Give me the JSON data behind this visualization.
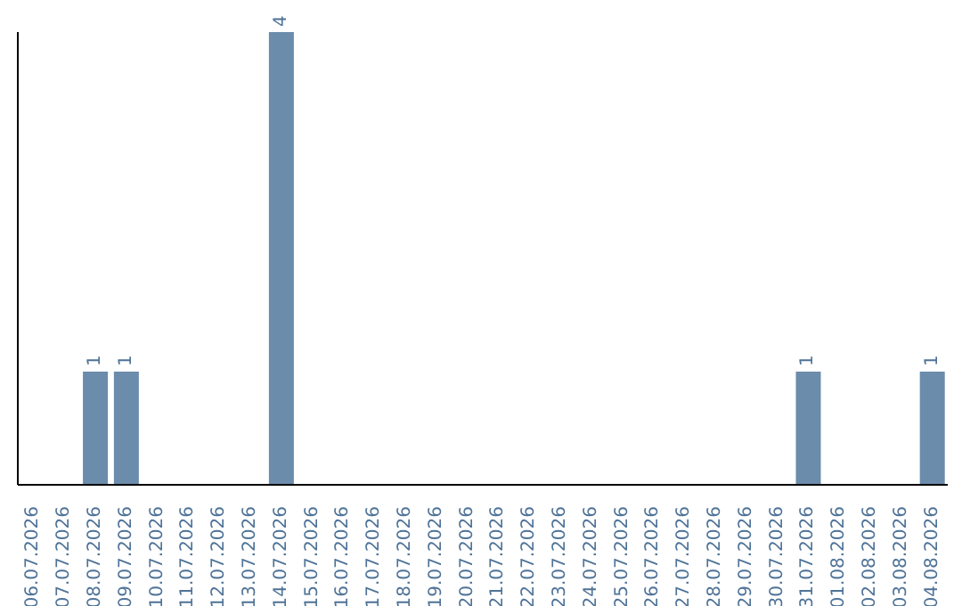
{
  "chart_data": {
    "type": "bar",
    "relative": false,
    "categories": [
      "06.07.2026",
      "07.07.2026",
      "08.07.2026",
      "09.07.2026",
      "10.07.2026",
      "11.07.2026",
      "12.07.2026",
      "13.07.2026",
      "14.07.2026",
      "15.07.2026",
      "16.07.2026",
      "17.07.2026",
      "18.07.2026",
      "19.07.2026",
      "20.07.2026",
      "21.07.2026",
      "22.07.2026",
      "23.07.2026",
      "24.07.2026",
      "25.07.2026",
      "26.07.2026",
      "27.07.2026",
      "28.07.2026",
      "29.07.2026",
      "30.07.2026",
      "31.07.2026",
      "01.08.2026",
      "02.08.2026",
      "03.08.2026",
      "04.08.2026"
    ],
    "values": [
      0,
      0,
      1,
      1,
      0,
      0,
      0,
      0,
      4,
      0,
      0,
      0,
      0,
      0,
      0,
      0,
      0,
      0,
      0,
      0,
      0,
      0,
      0,
      0,
      0,
      1,
      0,
      0,
      0,
      1
    ],
    "value_labels": [
      null,
      null,
      "1",
      "1",
      null,
      null,
      null,
      null,
      "4",
      null,
      null,
      null,
      null,
      null,
      null,
      null,
      null,
      null,
      null,
      null,
      null,
      null,
      null,
      null,
      null,
      "1",
      null,
      null,
      null,
      "1"
    ],
    "color": "#6b8cab",
    "grid": false,
    "legend": false
  }
}
